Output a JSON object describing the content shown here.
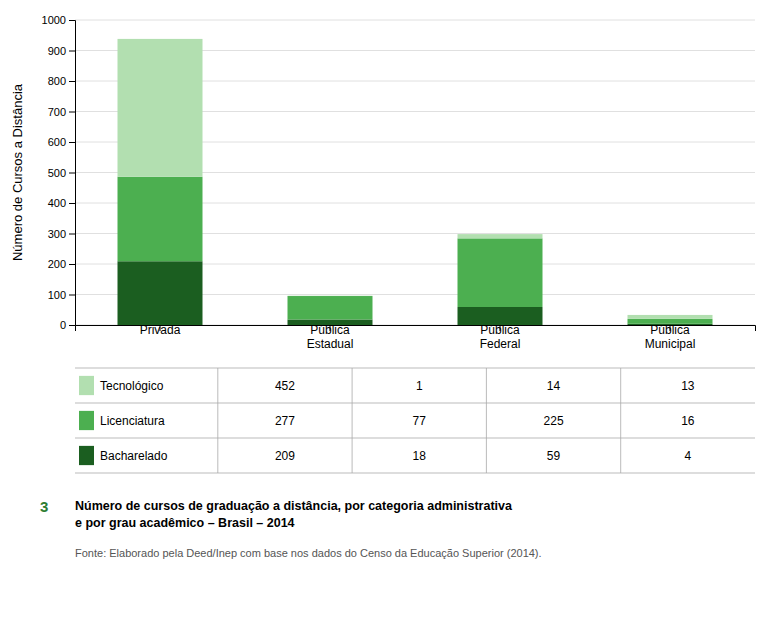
{
  "chart_data": {
    "type": "bar",
    "stacked": true,
    "grid": true,
    "title": "Número de cursos de graduação a distância, por categoria administrativa\ne por grau acadêmico – Brasil – 2014",
    "subtitle": "Fonte: Elaborado pela Deed/Inep com base nos dados do Censo da Educação Superior (2014).",
    "annotations": [
      {
        "text": "3",
        "color": "#2e7d32"
      }
    ],
    "ylabel": "Número de Cursos a Distância",
    "categories": [
      "Privada",
      "Pública\nEstadual",
      "Pública\nFederal",
      "Pública\nMunicipal"
    ],
    "series": [
      {
        "name": "Bacharelado",
        "color": "#1b5e20",
        "values": [
          209,
          18,
          59,
          4
        ]
      },
      {
        "name": "Licenciatura",
        "color": "#4caf50",
        "values": [
          277,
          77,
          225,
          16
        ]
      },
      {
        "name": "Tecnológico",
        "color": "#b2dfb0",
        "values": [
          452,
          1,
          14,
          13
        ]
      }
    ],
    "ylim": [
      0,
      1000
    ],
    "yticks": [
      0,
      100,
      200,
      300,
      400,
      500,
      600,
      700,
      800,
      900,
      1000
    ]
  }
}
